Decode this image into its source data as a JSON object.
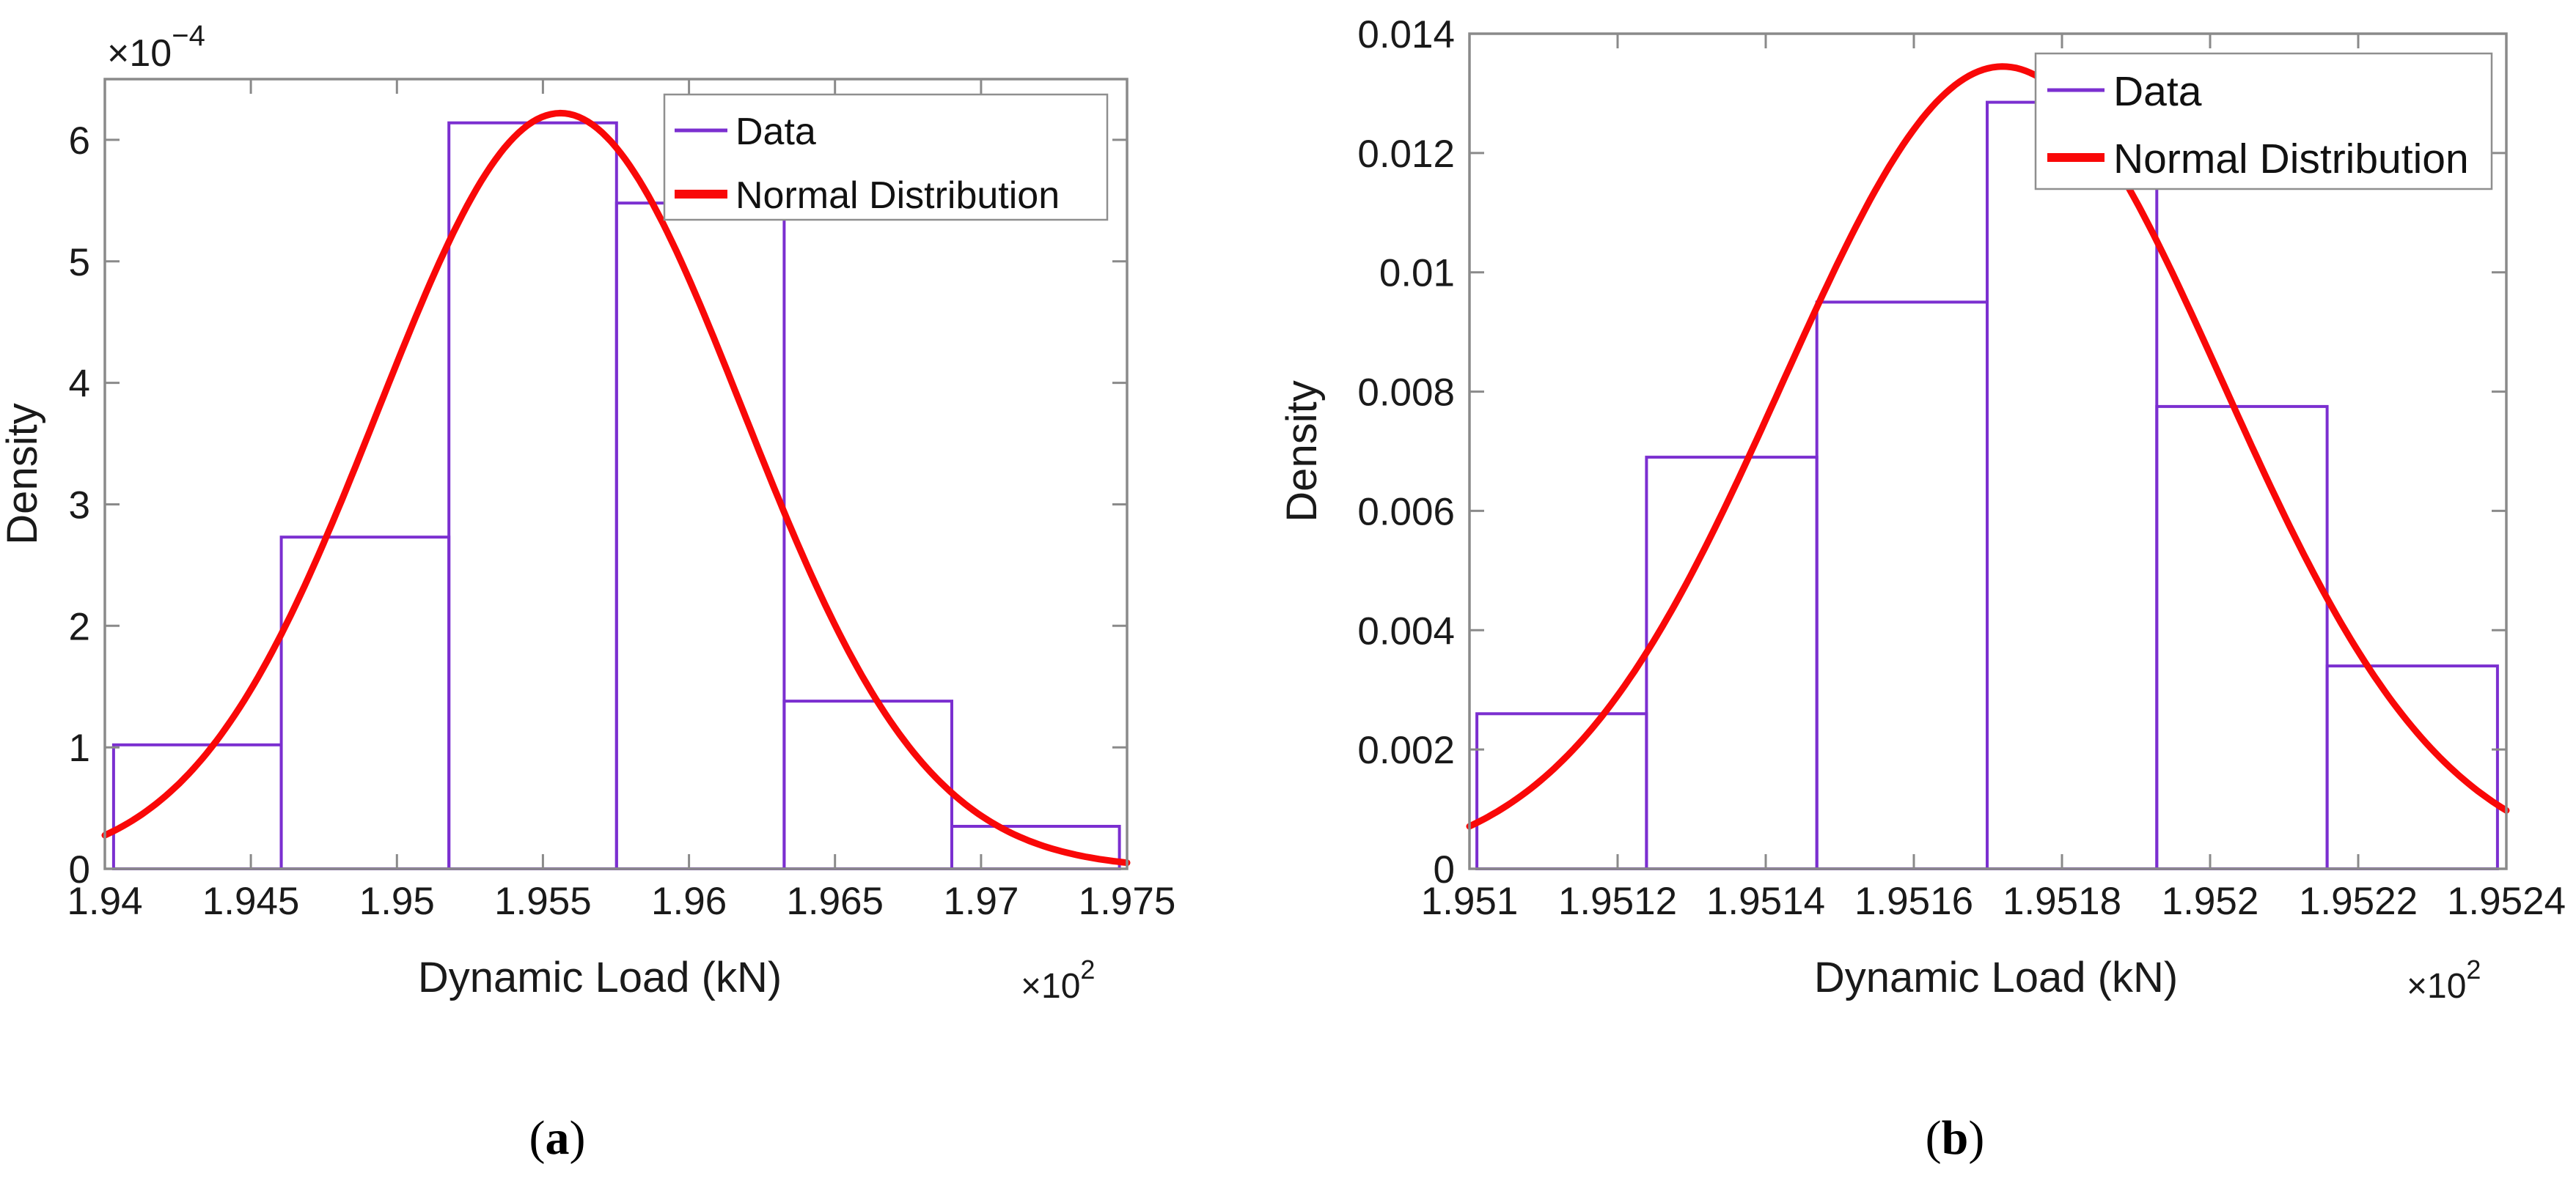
{
  "figure": {
    "background_color": "#ffffff",
    "text_color": "#1a1a1a",
    "axis_color": "#8a8a8a",
    "legend_border_color": "#8f8f8f",
    "paren_open": "(",
    "paren_close": ")"
  },
  "panels": [
    {
      "caption_letter": "a"
    },
    {
      "caption_letter": "b"
    }
  ],
  "chart_data": [
    {
      "type": "histogram+normal-curve",
      "title": "",
      "xlabel": "Dynamic Load (kN)",
      "ylabel": "Density",
      "x_offset": {
        "base": "×10",
        "exp": "2"
      },
      "y_offset": {
        "base": "×10",
        "exp": "−4"
      },
      "xlim": [
        1.94,
        1.975
      ],
      "ylim": [
        0,
        0.00065
      ],
      "grid": false,
      "legend_position": "top-right",
      "x_ticks": {
        "values": [
          1.94,
          1.945,
          1.95,
          1.955,
          1.96,
          1.965,
          1.97,
          1.975
        ],
        "labels": [
          "1.94",
          "1.945",
          "1.95",
          "1.955",
          "1.96",
          "1.965",
          "1.97",
          "1.975"
        ]
      },
      "y_ticks": {
        "values": [
          0,
          0.0001,
          0.0002,
          0.0003,
          0.0004,
          0.0005,
          0.0006
        ],
        "labels": [
          "0",
          "1",
          "2",
          "3",
          "4",
          "5",
          "6"
        ]
      },
      "legend": [
        {
          "label": "Data",
          "color": "#7B2FD0",
          "sample_weight": "thin"
        },
        {
          "label": "Normal Distribution",
          "color": "#F90808",
          "sample_weight": "thick"
        }
      ],
      "histogram": {
        "bin_edges": [
          1.9403,
          1.94604,
          1.95178,
          1.95752,
          1.96326,
          1.969,
          1.97474
        ],
        "densities": [
          0.000102,
          0.000273,
          0.000614,
          0.000548,
          0.000138,
          3.5e-05
        ]
      },
      "normal_curve": {
        "mean": 1.9556,
        "sigma": 0.00625,
        "peak_density": 0.000622
      },
      "colors": {
        "data": "#7B2FD0",
        "curve": "#F90808"
      }
    },
    {
      "type": "histogram+normal-curve",
      "title": "",
      "xlabel": "Dynamic Load (kN)",
      "ylabel": "Density",
      "x_offset": {
        "base": "×10",
        "exp": "2"
      },
      "y_offset": null,
      "xlim": [
        1.951,
        1.9524
      ],
      "ylim": [
        0,
        0.014
      ],
      "grid": false,
      "legend_position": "top-right",
      "x_ticks": {
        "values": [
          1.951,
          1.9512,
          1.9514,
          1.9516,
          1.9518,
          1.952,
          1.9522,
          1.9524
        ],
        "labels": [
          "1.951",
          "1.9512",
          "1.9514",
          "1.9516",
          "1.9518",
          "1.952",
          "1.9522",
          "1.9524"
        ]
      },
      "y_ticks": {
        "values": [
          0,
          0.002,
          0.004,
          0.006,
          0.008,
          0.01,
          0.012,
          0.014
        ],
        "labels": [
          "0",
          "0.002",
          "0.004",
          "0.006",
          "0.008",
          "0.01",
          "0.012",
          "0.014"
        ]
      },
      "legend": [
        {
          "label": "Data",
          "color": "#7B2FD0",
          "sample_weight": "thin"
        },
        {
          "label": "Normal Distribution",
          "color": "#F90808",
          "sample_weight": "thick"
        }
      ],
      "histogram": {
        "bin_edges": [
          1.95101,
          1.951239,
          1.951469,
          1.951699,
          1.951928,
          1.952158,
          1.952388
        ],
        "densities": [
          0.0026,
          0.0069,
          0.0095,
          0.01285,
          0.00775,
          0.0034
        ]
      },
      "normal_curve": {
        "mean": 1.95172,
        "sigma": 0.000297,
        "peak_density": 0.01345
      },
      "colors": {
        "data": "#7B2FD0",
        "curve": "#F90808"
      }
    }
  ]
}
